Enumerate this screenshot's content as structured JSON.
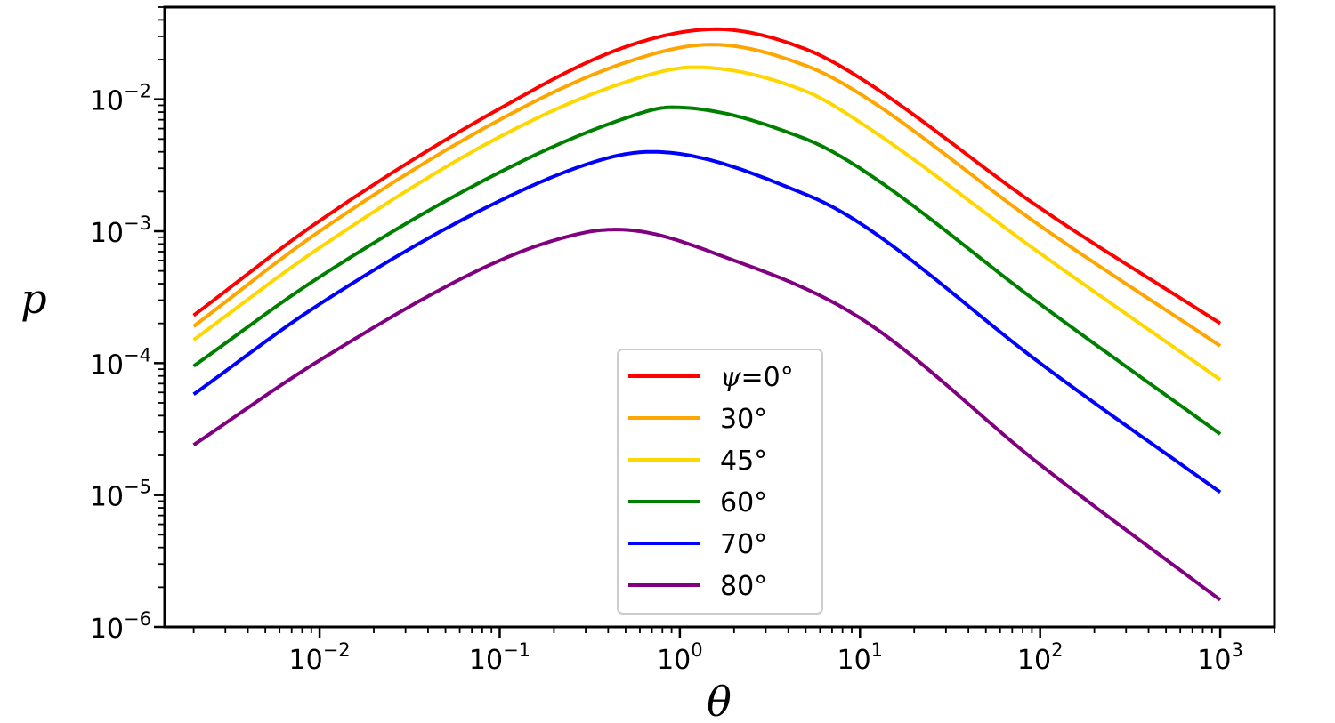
{
  "chart_data": {
    "type": "line",
    "x_scale": "log",
    "y_scale": "log",
    "xlim": [
      0.00138,
      2000
    ],
    "ylim": [
      1e-06,
      0.05
    ],
    "xlabel": "θ",
    "ylabel": "p",
    "x_ticks": [
      {
        "value": 0.01,
        "base": "10",
        "exp": "−2"
      },
      {
        "value": 0.1,
        "base": "10",
        "exp": "−1"
      },
      {
        "value": 1,
        "base": "10",
        "exp": "0"
      },
      {
        "value": 10,
        "base": "10",
        "exp": "1"
      },
      {
        "value": 100,
        "base": "10",
        "exp": "2"
      },
      {
        "value": 1000,
        "base": "10",
        "exp": "3"
      }
    ],
    "y_ticks": [
      {
        "value": 1e-06,
        "base": "10",
        "exp": "−6"
      },
      {
        "value": 1e-05,
        "base": "10",
        "exp": "−5"
      },
      {
        "value": 0.0001,
        "base": "10",
        "exp": "−4"
      },
      {
        "value": 0.001,
        "base": "10",
        "exp": "−3"
      },
      {
        "value": 0.01,
        "base": "10",
        "exp": "−2"
      }
    ],
    "grid": false,
    "legend": {
      "position": "lower-center",
      "title_prefix": "ψ",
      "first_suffix": "=0°"
    },
    "series": [
      {
        "name": "ψ=0°",
        "label": "0°",
        "color": "#ff0000",
        "x": [
          0.002,
          0.01,
          0.1,
          0.5,
          1.6,
          5,
          10,
          100,
          1000
        ],
        "y": [
          0.00023,
          0.0012,
          0.0085,
          0.025,
          0.034,
          0.024,
          0.0145,
          0.0015,
          0.0002
        ]
      },
      {
        "name": "30°",
        "label": "30°",
        "color": "#ffa500",
        "x": [
          0.002,
          0.01,
          0.1,
          0.5,
          1.5,
          5,
          10,
          100,
          1000
        ],
        "y": [
          0.00019,
          0.001,
          0.007,
          0.019,
          0.026,
          0.018,
          0.011,
          0.0011,
          0.000135
        ]
      },
      {
        "name": "45°",
        "label": "45°",
        "color": "#ffd700",
        "x": [
          0.002,
          0.01,
          0.1,
          0.5,
          1.2,
          5,
          10,
          100,
          1000
        ],
        "y": [
          0.00015,
          0.00075,
          0.0052,
          0.0135,
          0.0175,
          0.0115,
          0.0067,
          0.00068,
          7.5e-05
        ]
      },
      {
        "name": "60°",
        "label": "60°",
        "color": "#008000",
        "x": [
          0.002,
          0.01,
          0.1,
          0.5,
          0.9,
          5,
          10,
          100,
          1000
        ],
        "y": [
          9.5e-05,
          0.00045,
          0.0028,
          0.0072,
          0.0087,
          0.005,
          0.003,
          0.00028,
          2.9e-05
        ]
      },
      {
        "name": "70°",
        "label": "70°",
        "color": "#0000ff",
        "x": [
          0.002,
          0.01,
          0.1,
          0.4,
          0.7,
          5,
          10,
          100,
          1000
        ],
        "y": [
          5.8e-05,
          0.00028,
          0.0017,
          0.0036,
          0.004,
          0.0019,
          0.00115,
          0.0001,
          1.05e-05
        ]
      },
      {
        "name": "80°",
        "label": "80°",
        "color": "#800080",
        "x": [
          0.002,
          0.01,
          0.1,
          0.3,
          0.45,
          2,
          10,
          100,
          1000
        ],
        "y": [
          2.4e-05,
          0.000105,
          0.0006,
          0.00098,
          0.00103,
          0.0006,
          0.00022,
          1.7e-05,
          1.6e-06
        ]
      }
    ]
  }
}
